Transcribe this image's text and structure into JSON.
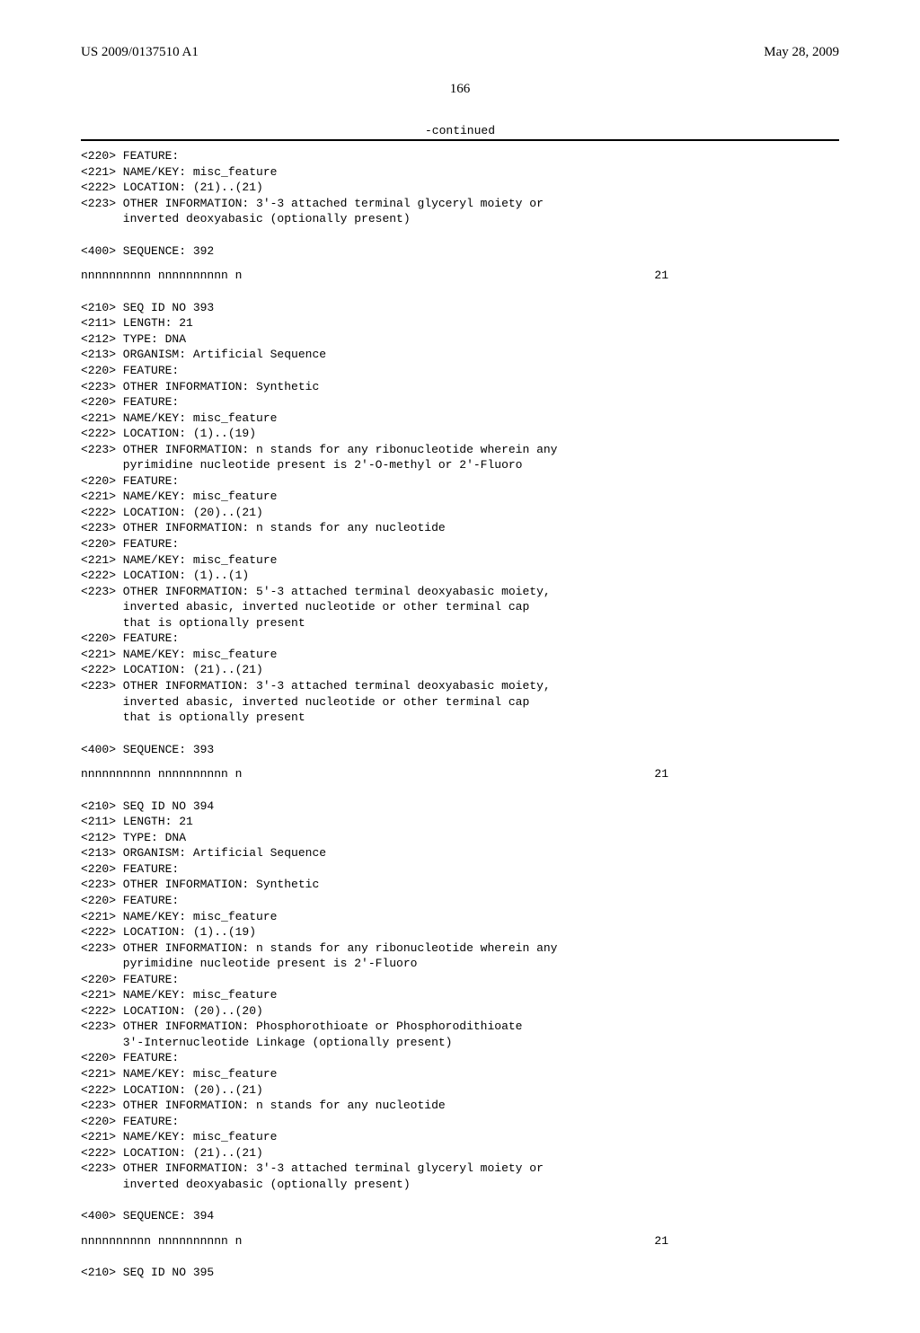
{
  "header": {
    "pub_number": "US 2009/0137510 A1",
    "pub_date": "May 28, 2009"
  },
  "page_number": "166",
  "continued_label": "-continued",
  "blocks": [
    {
      "lines": [
        "<220> FEATURE:",
        "<221> NAME/KEY: misc_feature",
        "<222> LOCATION: (21)..(21)",
        "<223> OTHER INFORMATION: 3'-3 attached terminal glyceryl moiety or",
        "      inverted deoxyabasic (optionally present)"
      ]
    },
    {
      "lines": [
        "<400> SEQUENCE: 392"
      ],
      "seq": {
        "text": "nnnnnnnnnn nnnnnnnnnn n",
        "len": "21"
      }
    },
    {
      "lines": [
        "<210> SEQ ID NO 393",
        "<211> LENGTH: 21",
        "<212> TYPE: DNA",
        "<213> ORGANISM: Artificial Sequence",
        "<220> FEATURE:",
        "<223> OTHER INFORMATION: Synthetic",
        "<220> FEATURE:",
        "<221> NAME/KEY: misc_feature",
        "<222> LOCATION: (1)..(19)",
        "<223> OTHER INFORMATION: n stands for any ribonucleotide wherein any",
        "      pyrimidine nucleotide present is 2'-O-methyl or 2'-Fluoro",
        "<220> FEATURE:",
        "<221> NAME/KEY: misc_feature",
        "<222> LOCATION: (20)..(21)",
        "<223> OTHER INFORMATION: n stands for any nucleotide",
        "<220> FEATURE:",
        "<221> NAME/KEY: misc_feature",
        "<222> LOCATION: (1)..(1)",
        "<223> OTHER INFORMATION: 5'-3 attached terminal deoxyabasic moiety,",
        "      inverted abasic, inverted nucleotide or other terminal cap",
        "      that is optionally present",
        "<220> FEATURE:",
        "<221> NAME/KEY: misc_feature",
        "<222> LOCATION: (21)..(21)",
        "<223> OTHER INFORMATION: 3'-3 attached terminal deoxyabasic moiety,",
        "      inverted abasic, inverted nucleotide or other terminal cap",
        "      that is optionally present"
      ]
    },
    {
      "lines": [
        "<400> SEQUENCE: 393"
      ],
      "seq": {
        "text": "nnnnnnnnnn nnnnnnnnnn n",
        "len": "21"
      }
    },
    {
      "lines": [
        "<210> SEQ ID NO 394",
        "<211> LENGTH: 21",
        "<212> TYPE: DNA",
        "<213> ORGANISM: Artificial Sequence",
        "<220> FEATURE:",
        "<223> OTHER INFORMATION: Synthetic",
        "<220> FEATURE:",
        "<221> NAME/KEY: misc_feature",
        "<222> LOCATION: (1)..(19)",
        "<223> OTHER INFORMATION: n stands for any ribonucleotide wherein any",
        "      pyrimidine nucleotide present is 2'-Fluoro",
        "<220> FEATURE:",
        "<221> NAME/KEY: misc_feature",
        "<222> LOCATION: (20)..(20)",
        "<223> OTHER INFORMATION: Phosphorothioate or Phosphorodithioate",
        "      3'-Internucleotide Linkage (optionally present)",
        "<220> FEATURE:",
        "<221> NAME/KEY: misc_feature",
        "<222> LOCATION: (20)..(21)",
        "<223> OTHER INFORMATION: n stands for any nucleotide",
        "<220> FEATURE:",
        "<221> NAME/KEY: misc_feature",
        "<222> LOCATION: (21)..(21)",
        "<223> OTHER INFORMATION: 3'-3 attached terminal glyceryl moiety or",
        "      inverted deoxyabasic (optionally present)"
      ]
    },
    {
      "lines": [
        "<400> SEQUENCE: 394"
      ],
      "seq": {
        "text": "nnnnnnnnnn nnnnnnnnnn n",
        "len": "21"
      }
    },
    {
      "lines": [
        "<210> SEQ ID NO 395"
      ]
    }
  ]
}
